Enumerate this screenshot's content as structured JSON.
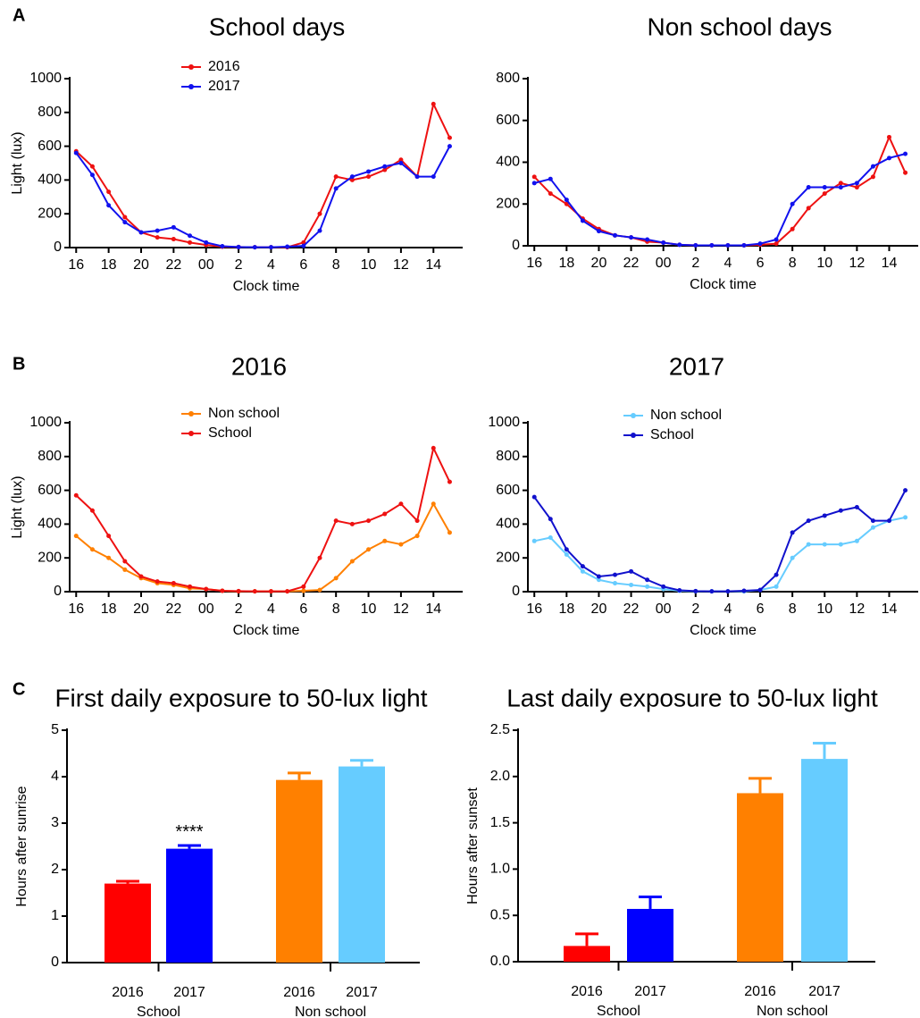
{
  "panel_labels": [
    "A",
    "B",
    "C"
  ],
  "chart_data": [
    {
      "type": "line",
      "title": "School days",
      "ylabel": "Light (lux)",
      "xlabel": "Clock time",
      "x": [
        16,
        17,
        18,
        19,
        20,
        21,
        22,
        23,
        24,
        25,
        26,
        27,
        28,
        29,
        30,
        31,
        32,
        33,
        34,
        35,
        36,
        37,
        38,
        39
      ],
      "series": [
        {
          "name": "2016",
          "color": "#ee1111",
          "values": [
            570,
            480,
            330,
            180,
            90,
            60,
            50,
            30,
            15,
            5,
            3,
            2,
            2,
            2,
            30,
            200,
            420,
            400,
            420,
            460,
            520,
            420,
            850,
            650
          ]
        },
        {
          "name": "2017",
          "color": "#1111ee",
          "values": [
            560,
            430,
            250,
            150,
            90,
            100,
            120,
            70,
            30,
            8,
            3,
            2,
            2,
            5,
            10,
            100,
            350,
            420,
            450,
            480,
            500,
            420,
            420,
            600
          ]
        }
      ],
      "xlim": [
        15.6,
        39.8
      ],
      "ylim": [
        0,
        1000
      ],
      "xticks": [
        16,
        18,
        20,
        22,
        {
          "value": 24,
          "label": "00"
        },
        {
          "value": 26,
          "label": "2"
        },
        {
          "value": 28,
          "label": "4"
        },
        {
          "value": 30,
          "label": "6"
        },
        {
          "value": 32,
          "label": "8"
        },
        {
          "value": 34,
          "label": "10"
        },
        {
          "value": 36,
          "label": "12"
        },
        {
          "value": 38,
          "label": "14"
        }
      ],
      "yticks": [
        0,
        200,
        400,
        600,
        800,
        1000
      ]
    },
    {
      "type": "line",
      "title": "Non school days",
      "xlabel": "Clock time",
      "x": [
        16,
        17,
        18,
        19,
        20,
        21,
        22,
        23,
        24,
        25,
        26,
        27,
        28,
        29,
        30,
        31,
        32,
        33,
        34,
        35,
        36,
        37,
        38,
        39
      ],
      "series": [
        {
          "color": "#ee1111",
          "values": [
            330,
            250,
            200,
            130,
            80,
            50,
            40,
            20,
            15,
            5,
            2,
            2,
            2,
            2,
            5,
            10,
            80,
            180,
            250,
            300,
            280,
            330,
            520,
            350
          ]
        },
        {
          "color": "#1111ee",
          "values": [
            300,
            320,
            220,
            120,
            70,
            50,
            40,
            30,
            15,
            5,
            2,
            2,
            2,
            2,
            10,
            30,
            200,
            280,
            280,
            280,
            300,
            380,
            420,
            440
          ]
        }
      ],
      "xlim": [
        15.6,
        39.8
      ],
      "ylim": [
        0,
        800
      ],
      "xticks": [
        16,
        18,
        20,
        22,
        {
          "value": 24,
          "label": "00"
        },
        {
          "value": 26,
          "label": "2"
        },
        {
          "value": 28,
          "label": "4"
        },
        {
          "value": 30,
          "label": "6"
        },
        {
          "value": 32,
          "label": "8"
        },
        {
          "value": 34,
          "label": "10"
        },
        {
          "value": 36,
          "label": "12"
        },
        {
          "value": 38,
          "label": "14"
        }
      ],
      "yticks": [
        0,
        200,
        400,
        600,
        800
      ]
    },
    {
      "type": "line",
      "title": "2016",
      "ylabel": "Light (lux)",
      "xlabel": "Clock time",
      "x": [
        16,
        17,
        18,
        19,
        20,
        21,
        22,
        23,
        24,
        25,
        26,
        27,
        28,
        29,
        30,
        31,
        32,
        33,
        34,
        35,
        36,
        37,
        38,
        39
      ],
      "series": [
        {
          "name": "Non school",
          "color": "#ff8000",
          "values": [
            330,
            250,
            200,
            130,
            80,
            50,
            40,
            20,
            15,
            5,
            2,
            2,
            2,
            2,
            5,
            10,
            80,
            180,
            250,
            300,
            280,
            330,
            520,
            350
          ]
        },
        {
          "name": "School",
          "color": "#ee1111",
          "values": [
            570,
            480,
            330,
            180,
            90,
            60,
            50,
            30,
            15,
            5,
            3,
            2,
            2,
            2,
            30,
            200,
            420,
            400,
            420,
            460,
            520,
            420,
            850,
            650
          ]
        }
      ],
      "xlim": [
        15.6,
        39.8
      ],
      "ylim": [
        0,
        1000
      ],
      "xticks": [
        16,
        18,
        20,
        22,
        {
          "value": 24,
          "label": "00"
        },
        {
          "value": 26,
          "label": "2"
        },
        {
          "value": 28,
          "label": "4"
        },
        {
          "value": 30,
          "label": "6"
        },
        {
          "value": 32,
          "label": "8"
        },
        {
          "value": 34,
          "label": "10"
        },
        {
          "value": 36,
          "label": "12"
        },
        {
          "value": 38,
          "label": "14"
        }
      ],
      "yticks": [
        0,
        200,
        400,
        600,
        800,
        1000
      ]
    },
    {
      "type": "line",
      "title": "2017",
      "xlabel": "Clock time",
      "x": [
        16,
        17,
        18,
        19,
        20,
        21,
        22,
        23,
        24,
        25,
        26,
        27,
        28,
        29,
        30,
        31,
        32,
        33,
        34,
        35,
        36,
        37,
        38,
        39
      ],
      "series": [
        {
          "name": "Non school",
          "color": "#66ccff",
          "values": [
            300,
            320,
            220,
            120,
            70,
            50,
            40,
            30,
            15,
            5,
            2,
            2,
            2,
            2,
            10,
            30,
            200,
            280,
            280,
            280,
            300,
            380,
            420,
            440
          ]
        },
        {
          "name": "School",
          "color": "#1111cc",
          "values": [
            560,
            430,
            250,
            150,
            90,
            100,
            120,
            70,
            30,
            8,
            3,
            2,
            2,
            5,
            10,
            100,
            350,
            420,
            450,
            480,
            500,
            420,
            420,
            600
          ]
        }
      ],
      "xlim": [
        15.6,
        39.8
      ],
      "ylim": [
        0,
        1000
      ],
      "xticks": [
        16,
        18,
        20,
        22,
        {
          "value": 24,
          "label": "00"
        },
        {
          "value": 26,
          "label": "2"
        },
        {
          "value": 28,
          "label": "4"
        },
        {
          "value": 30,
          "label": "6"
        },
        {
          "value": 32,
          "label": "8"
        },
        {
          "value": 34,
          "label": "10"
        },
        {
          "value": 36,
          "label": "12"
        },
        {
          "value": 38,
          "label": "14"
        }
      ],
      "yticks": [
        0,
        200,
        400,
        600,
        800,
        1000
      ]
    },
    {
      "type": "bar",
      "title": "First daily exposure to 50-lux light",
      "ylabel": "Hours after sunrise",
      "categories": [
        "2016",
        "2017",
        "2016",
        "2017"
      ],
      "groups": [
        "School",
        "Non school"
      ],
      "values": [
        1.7,
        2.45,
        3.93,
        4.22
      ],
      "errors": [
        0.05,
        0.07,
        0.15,
        0.13
      ],
      "colors": [
        "#ff0000",
        "#0000ff",
        "#ff8000",
        "#66ccff"
      ],
      "annotation": "****",
      "ylim": [
        0,
        5
      ],
      "yticks": [
        0,
        1,
        2,
        3,
        4,
        5
      ]
    },
    {
      "type": "bar",
      "title": "Last daily exposure to 50-lux light",
      "ylabel": "Hours after sunset",
      "categories": [
        "2016",
        "2017",
        "2016",
        "2017"
      ],
      "groups": [
        "School",
        "Non school"
      ],
      "values": [
        0.17,
        0.57,
        1.82,
        2.19
      ],
      "errors": [
        0.13,
        0.13,
        0.16,
        0.17
      ],
      "colors": [
        "#ff0000",
        "#0000ff",
        "#ff8000",
        "#66ccff"
      ],
      "ylim": [
        0,
        2.5
      ],
      "yticks": [
        {
          "value": 0,
          "label": "0.0"
        },
        0.5,
        {
          "value": 1,
          "label": "1.0"
        },
        1.5,
        {
          "value": 2,
          "label": "2.0"
        },
        2.5
      ]
    }
  ]
}
